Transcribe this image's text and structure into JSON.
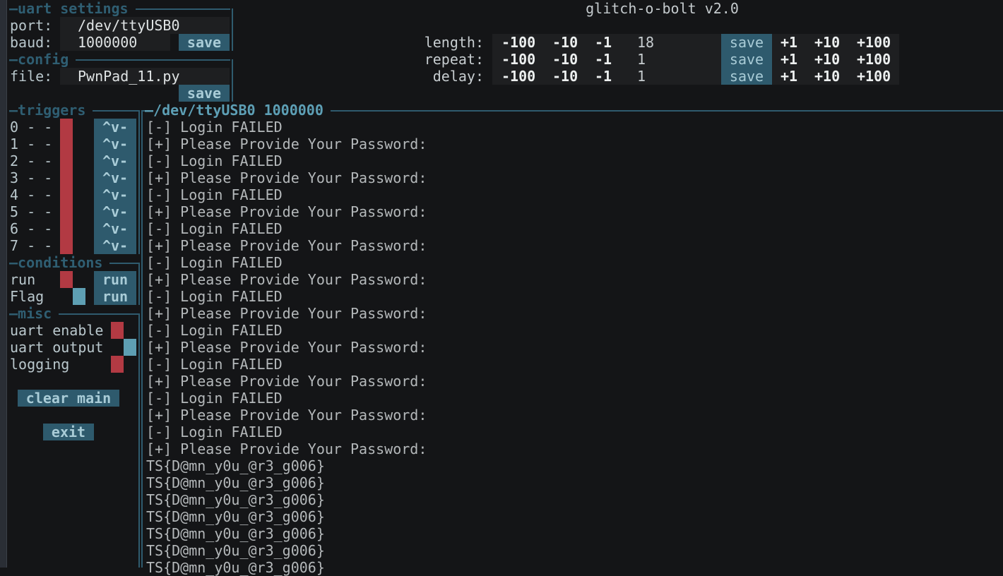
{
  "app_title": "glitch-o-bolt v2.0",
  "uart_settings": {
    "title": "uart settings",
    "port_label": "port:",
    "port_value": "/dev/ttyUSB0",
    "baud_label": "baud:",
    "baud_value": "1000000",
    "save_label": "save"
  },
  "config": {
    "title": "config",
    "file_label": "file:",
    "file_value": "PwnPad_11.py",
    "save_label": "save"
  },
  "params": {
    "rows": [
      {
        "label": "length:",
        "value": "18"
      },
      {
        "label": "repeat:",
        "value": "1"
      },
      {
        "label": "delay:",
        "value": "1"
      }
    ],
    "dec_buttons": [
      "-100",
      "-10",
      "-1"
    ],
    "inc_buttons": [
      "+1",
      "+10",
      "+100"
    ],
    "save_label": "save"
  },
  "triggers": {
    "title": "triggers",
    "button_label": "^v-",
    "items": [
      {
        "label": "0 - -",
        "state": "off"
      },
      {
        "label": "1 - -",
        "state": "off"
      },
      {
        "label": "2 - -",
        "state": "off"
      },
      {
        "label": "3 - -",
        "state": "off"
      },
      {
        "label": "4 - -",
        "state": "off"
      },
      {
        "label": "5 - -",
        "state": "off"
      },
      {
        "label": "6 - -",
        "state": "off"
      },
      {
        "label": "7 - -",
        "state": "off"
      }
    ]
  },
  "conditions": {
    "title": "conditions",
    "items": [
      {
        "label": "run",
        "state": "off",
        "button": "run"
      },
      {
        "label": "Flag",
        "state": "on",
        "button": "run"
      }
    ]
  },
  "misc": {
    "title": "misc",
    "items": [
      {
        "label": "uart enable",
        "state": "off"
      },
      {
        "label": "uart output",
        "state": "on"
      },
      {
        "label": "logging",
        "state": "off"
      }
    ],
    "clear_label": "clear main",
    "exit_label": "exit"
  },
  "log": {
    "title": "/dev/ttyUSB0 1000000",
    "lines": [
      "[-] Login FAILED",
      "[+] Please Provide Your Password:",
      "[-] Login FAILED",
      "[+] Please Provide Your Password:",
      "[-] Login FAILED",
      "[+] Please Provide Your Password:",
      "[-] Login FAILED",
      "[+] Please Provide Your Password:",
      "[-] Login FAILED",
      "[+] Please Provide Your Password:",
      "[-] Login FAILED",
      "[+] Please Provide Your Password:",
      "[-] Login FAILED",
      "[+] Please Provide Your Password:",
      "[-] Login FAILED",
      "[+] Please Provide Your Password:",
      "[-] Login FAILED",
      "[+] Please Provide Your Password:",
      "[-] Login FAILED",
      "[+] Please Provide Your Password:",
      "TS{D@mn_y0u_@r3_g006}",
      "TS{D@mn_y0u_@r3_g006}",
      "TS{D@mn_y0u_@r3_g006}",
      "TS{D@mn_y0u_@r3_g006}",
      "TS{D@mn_y0u_@r3_g006}",
      "TS{D@mn_y0u_@r3_g006}",
      "TS{D@mn_y0u_@r3_g006}"
    ]
  },
  "colors": {
    "off": "#b23a43",
    "on": "#5e9fb3",
    "accent": "#2e5a6d",
    "log_title": "#5d9fb5"
  }
}
